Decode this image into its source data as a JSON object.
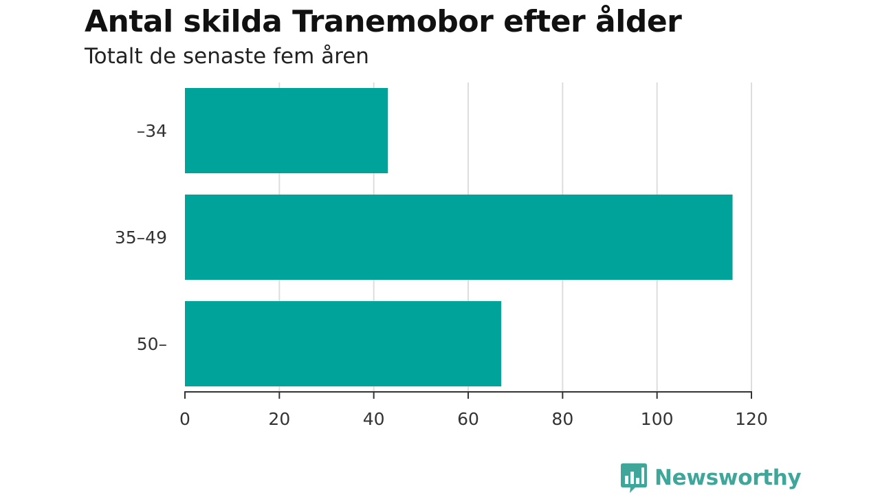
{
  "title": "Antal skilda Tranemobor efter ålder",
  "subtitle": "Totalt de senaste fem åren",
  "brand": {
    "name": "Newsworthy",
    "color": "#3fa69a",
    "icon": "bar-chart-speech-bubble-icon"
  },
  "colors": {
    "bar": "#00a39a",
    "grid": "#dddddd",
    "axis": "#333333"
  },
  "chart_data": {
    "type": "bar",
    "orientation": "horizontal",
    "categories": [
      "–34",
      "35–49",
      "50–"
    ],
    "values": [
      43,
      116,
      67
    ],
    "xlim": [
      0,
      120
    ],
    "xticks": [
      0,
      20,
      40,
      60,
      80,
      100,
      120
    ],
    "xlabel": "",
    "ylabel": "",
    "grid": true,
    "legend": "none"
  }
}
